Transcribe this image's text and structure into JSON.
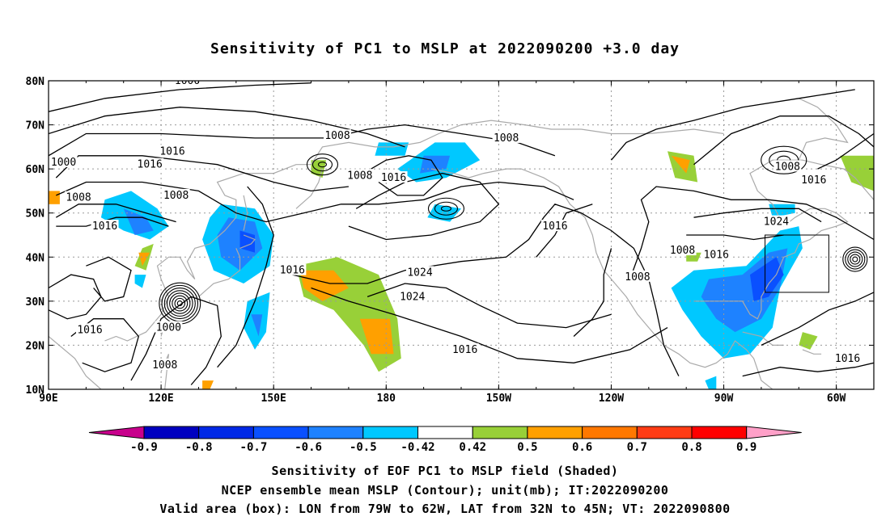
{
  "title": "Sensitivity of PC1 to MSLP at 2022090200 +3.0 day",
  "map": {
    "lon_ticks": [
      "90E",
      "120E",
      "150E",
      "180",
      "150W",
      "120W",
      "90W",
      "60W"
    ],
    "lat_ticks": [
      "10N",
      "20N",
      "30N",
      "40N",
      "50N",
      "60N",
      "70N",
      "80N"
    ],
    "contour_labels": [
      {
        "text": "1000",
        "lon": 127,
        "lat": 80
      },
      {
        "text": "1008",
        "lon": 167,
        "lat": 67.5
      },
      {
        "text": "1008",
        "lon": -148,
        "lat": 67
      },
      {
        "text": "1016",
        "lon": 123,
        "lat": 64
      },
      {
        "text": "1016",
        "lon": 117,
        "lat": 61
      },
      {
        "text": "1000",
        "lon": 94,
        "lat": 61.5
      },
      {
        "text": "1008",
        "lon": 98,
        "lat": 53.5
      },
      {
        "text": "1008",
        "lon": 124,
        "lat": 54
      },
      {
        "text": "1016",
        "lon": 105,
        "lat": 47
      },
      {
        "text": "1008",
        "lon": 173,
        "lat": 58.5
      },
      {
        "text": "1016",
        "lon": -178,
        "lat": 58
      },
      {
        "text": "1016",
        "lon": -135,
        "lat": 47
      },
      {
        "text": "1016",
        "lon": 155,
        "lat": 37
      },
      {
        "text": "1024",
        "lon": -171,
        "lat": 36.5
      },
      {
        "text": "1024",
        "lon": -173,
        "lat": 31
      },
      {
        "text": "1008",
        "lon": -101,
        "lat": 41.5
      },
      {
        "text": "1008",
        "lon": -113,
        "lat": 35.5
      },
      {
        "text": "1016",
        "lon": -92,
        "lat": 40.5
      },
      {
        "text": "1024",
        "lon": -76,
        "lat": 48
      },
      {
        "text": "1008",
        "lon": -73,
        "lat": 60.5
      },
      {
        "text": "1016",
        "lon": -66,
        "lat": 57.5
      },
      {
        "text": "1016",
        "lon": 101,
        "lat": 23.5
      },
      {
        "text": "1000",
        "lon": 122,
        "lat": 24
      },
      {
        "text": "1008",
        "lon": 121,
        "lat": 15.5
      },
      {
        "text": "1016",
        "lon": -159,
        "lat": 19
      },
      {
        "text": "1016",
        "lon": -57,
        "lat": 17
      }
    ],
    "valid_box": {
      "lon_west": -79,
      "lon_east": -62,
      "lat_south": 32,
      "lat_north": 45
    }
  },
  "colorbar": {
    "labels": [
      "-0.9",
      "-0.8",
      "-0.7",
      "-0.6",
      "-0.5",
      "-0.42",
      "0.42",
      "0.5",
      "0.6",
      "0.7",
      "0.8",
      "0.9"
    ],
    "colors": [
      "#0000c0",
      "#0028e6",
      "#0a50ff",
      "#1e82ff",
      "#00c8ff",
      "#ffffff",
      "#98d038",
      "#ffa000",
      "#ff7800",
      "#ff3c14",
      "#ff0000"
    ],
    "low_arrow_color": "#c8008c",
    "high_arrow_color": "#ffa0c8"
  },
  "footer": {
    "line1": "Sensitivity of EOF PC1 to MSLP field (Shaded)",
    "line2": "NCEP ensemble mean MSLP (Contour); unit(mb); IT:2022090200",
    "line3": "Valid area (box): LON from 79W to 62W, LAT from 32N to 45N; VT: 2022090800"
  },
  "colors": {
    "contour": "#000000",
    "coastline": "#aaaaaa",
    "grid": "#999999"
  }
}
